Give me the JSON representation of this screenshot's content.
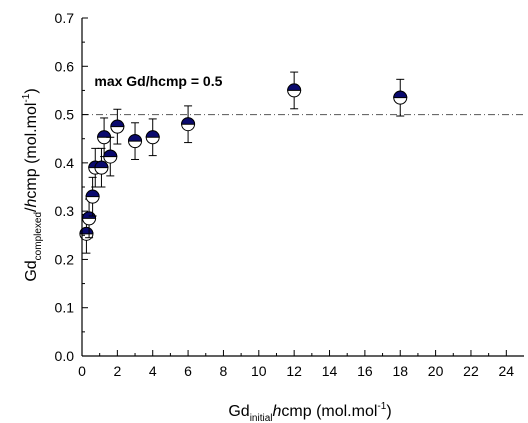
{
  "chart_data": {
    "type": "scatter",
    "xlim": [
      0,
      25
    ],
    "ylim": [
      0,
      0.7
    ],
    "x_ticks": [
      0,
      2,
      4,
      6,
      8,
      10,
      12,
      14,
      16,
      18,
      20,
      22,
      24
    ],
    "y_ticks": [
      0.0,
      0.1,
      0.2,
      0.3,
      0.4,
      0.5,
      0.6,
      0.7
    ],
    "x_tick_labels": [
      "0",
      "2",
      "4",
      "6",
      "8",
      "10",
      "12",
      "14",
      "16",
      "18",
      "20",
      "22",
      "24"
    ],
    "y_tick_labels": [
      "0.0",
      "0.1",
      "0.2",
      "0.3",
      "0.4",
      "0.5",
      "0.6",
      "0.7"
    ],
    "xlabel": {
      "main": "Gd",
      "sub": "initial",
      "after_italic": "h",
      "rest": "cmp (mol.mol",
      "sup": "-1",
      "close": ")"
    },
    "ylabel": {
      "main": "Gd",
      "sub": "complexed",
      "slash": "/",
      "after_italic": "h",
      "rest": "cmp (mol.mol",
      "sup": "-1",
      "close": ")"
    },
    "reference_line": {
      "y": 0.5,
      "style": "dash-dot",
      "color": "#555555"
    },
    "annotation": {
      "text": "max Gd/hcmp = 0.5",
      "x": 0.7,
      "y": 0.57
    },
    "grid": false,
    "marker": {
      "style": "half-filled-circle",
      "fill_color": "#0a0a6e",
      "edge_color": "#000000"
    },
    "points": [
      {
        "x": 0.25,
        "y": 0.253,
        "err": 0.04
      },
      {
        "x": 0.4,
        "y": 0.285,
        "err": 0.04
      },
      {
        "x": 0.6,
        "y": 0.33,
        "err": 0.04
      },
      {
        "x": 0.75,
        "y": 0.39,
        "err": 0.04
      },
      {
        "x": 1.1,
        "y": 0.39,
        "err": 0.04
      },
      {
        "x": 1.25,
        "y": 0.453,
        "err": 0.04
      },
      {
        "x": 1.6,
        "y": 0.413,
        "err": 0.04
      },
      {
        "x": 2.0,
        "y": 0.475,
        "err": 0.036
      },
      {
        "x": 3.0,
        "y": 0.445,
        "err": 0.038
      },
      {
        "x": 4.0,
        "y": 0.453,
        "err": 0.038
      },
      {
        "x": 6.0,
        "y": 0.48,
        "err": 0.038
      },
      {
        "x": 12.0,
        "y": 0.55,
        "err": 0.038
      },
      {
        "x": 18.0,
        "y": 0.535,
        "err": 0.038
      }
    ]
  }
}
